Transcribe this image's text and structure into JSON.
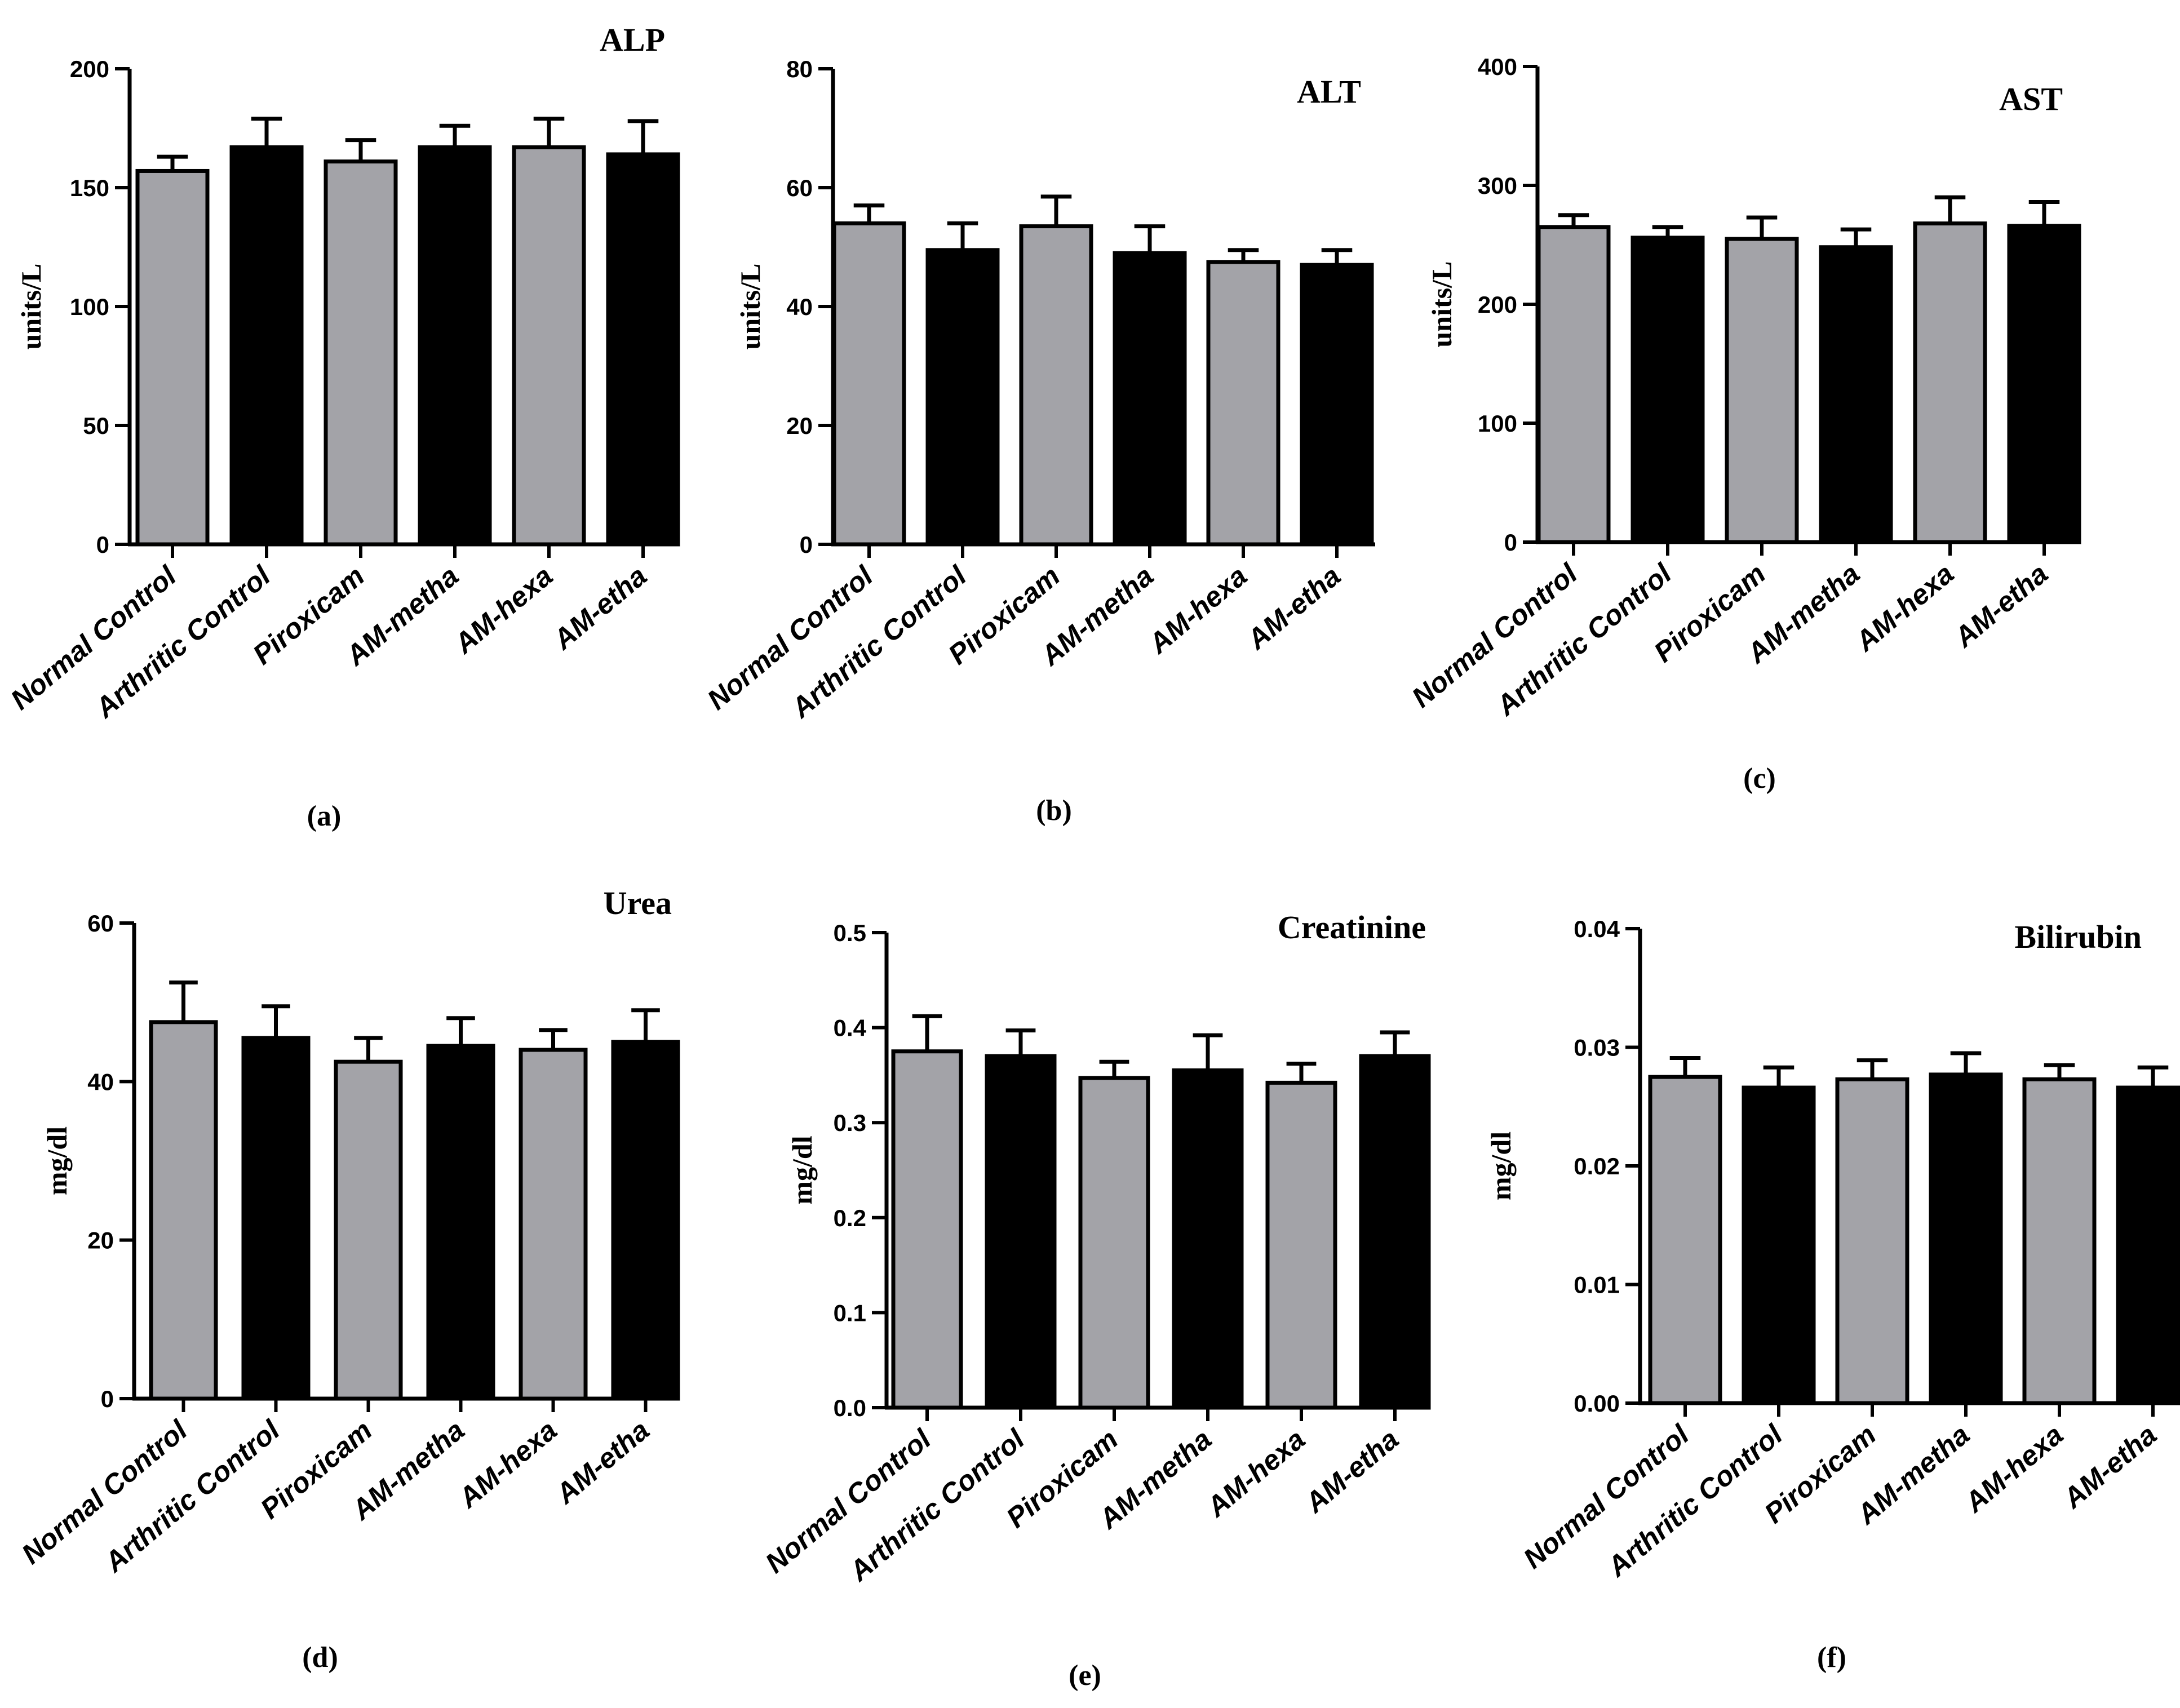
{
  "colors": {
    "gray_bar": "#a3a3a8",
    "black_bar": "#000000",
    "axis": "#000000",
    "background": "#ffffff"
  },
  "chart_data": [
    {
      "type": "bar",
      "title": "ALP",
      "caption": "(a)",
      "ylabel": "units/L",
      "xlabel": "",
      "categories": [
        "Normal Control",
        "Arthritic Control",
        "Piroxicam",
        "AM-metha",
        "AM-hexa",
        "AM-etha"
      ],
      "values": [
        157,
        167,
        161,
        167,
        167,
        164
      ],
      "errors": [
        6,
        12,
        9,
        9,
        12,
        14
      ],
      "bar_colors": [
        "gray",
        "black",
        "gray",
        "black",
        "gray",
        "black"
      ],
      "ylim": [
        0,
        200
      ],
      "yticks": [
        0,
        50,
        100,
        150,
        200
      ],
      "ytick_labels": [
        "0",
        "50",
        "100",
        "150",
        "200"
      ]
    },
    {
      "type": "bar",
      "title": "ALT",
      "caption": "(b)",
      "ylabel": "units/L",
      "xlabel": "",
      "categories": [
        "Normal Control",
        "Arthritic Control",
        "Piroxicam",
        "AM-metha",
        "AM-hexa",
        "AM-etha"
      ],
      "values": [
        54,
        49.5,
        53.5,
        49,
        47.5,
        47
      ],
      "errors": [
        3,
        4.5,
        5,
        4.5,
        2,
        2.5
      ],
      "bar_colors": [
        "gray",
        "black",
        "gray",
        "black",
        "gray",
        "black"
      ],
      "ylim": [
        0,
        80
      ],
      "yticks": [
        0,
        20,
        40,
        60,
        80
      ],
      "ytick_labels": [
        "0",
        "20",
        "40",
        "60",
        "80"
      ]
    },
    {
      "type": "bar",
      "title": "AST",
      "caption": "(c)",
      "ylabel": "units/L",
      "xlabel": "",
      "categories": [
        "Normal Control",
        "Arthritic Control",
        "Piroxicam",
        "AM-metha",
        "AM-hexa",
        "AM-etha"
      ],
      "values": [
        265,
        256,
        255,
        248,
        268,
        266
      ],
      "errors": [
        10,
        9,
        18,
        15,
        22,
        20
      ],
      "bar_colors": [
        "gray",
        "black",
        "gray",
        "black",
        "gray",
        "black"
      ],
      "ylim": [
        0,
        400
      ],
      "yticks": [
        0,
        100,
        200,
        300,
        400
      ],
      "ytick_labels": [
        "0",
        "100",
        "200",
        "300",
        "400"
      ]
    },
    {
      "type": "bar",
      "title": "Urea",
      "caption": "(d)",
      "ylabel": "mg/dl",
      "xlabel": "",
      "categories": [
        "Normal Control",
        "Arthritic Control",
        "Piroxicam",
        "AM-metha",
        "AM-hexa",
        "AM-etha"
      ],
      "values": [
        47.5,
        45.5,
        42.5,
        44.5,
        44,
        45
      ],
      "errors": [
        5,
        4,
        3,
        3.5,
        2.5,
        4
      ],
      "bar_colors": [
        "gray",
        "black",
        "gray",
        "black",
        "gray",
        "black"
      ],
      "ylim": [
        0,
        60
      ],
      "yticks": [
        0,
        20,
        40,
        60
      ],
      "ytick_labels": [
        "0",
        "20",
        "40",
        "60"
      ]
    },
    {
      "type": "bar",
      "title": "Creatinine",
      "caption": "(e)",
      "ylabel": "mg/dl",
      "xlabel": "",
      "categories": [
        "Normal Control",
        "Arthritic Control",
        "Piroxicam",
        "AM-metha",
        "AM-hexa",
        "AM-etha"
      ],
      "values": [
        0.375,
        0.37,
        0.347,
        0.355,
        0.342,
        0.37
      ],
      "errors": [
        0.037,
        0.027,
        0.017,
        0.037,
        0.02,
        0.025
      ],
      "bar_colors": [
        "gray",
        "black",
        "gray",
        "black",
        "gray",
        "black"
      ],
      "ylim": [
        0,
        0.5
      ],
      "yticks": [
        0,
        0.1,
        0.2,
        0.3,
        0.4,
        0.5
      ],
      "ytick_labels": [
        "0.0",
        "0.1",
        "0.2",
        "0.3",
        "0.4",
        "0.5"
      ]
    },
    {
      "type": "bar",
      "title": "Bilirubin",
      "caption": "(f)",
      "ylabel": "mg/dl",
      "xlabel": "",
      "categories": [
        "Normal Control",
        "Arthritic Control",
        "Piroxicam",
        "AM-metha",
        "AM-hexa",
        "AM-etha"
      ],
      "values": [
        0.0275,
        0.0266,
        0.0273,
        0.0277,
        0.0273,
        0.0266
      ],
      "errors": [
        0.0016,
        0.0017,
        0.0016,
        0.0018,
        0.0012,
        0.0017
      ],
      "bar_colors": [
        "gray",
        "black",
        "gray",
        "black",
        "gray",
        "black"
      ],
      "ylim": [
        0,
        0.04
      ],
      "yticks": [
        0,
        0.01,
        0.02,
        0.03,
        0.04
      ],
      "ytick_labels": [
        "0.00",
        "0.01",
        "0.02",
        "0.03",
        "0.04"
      ]
    }
  ]
}
